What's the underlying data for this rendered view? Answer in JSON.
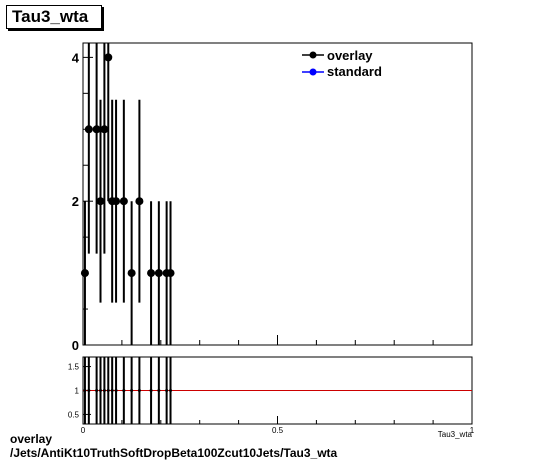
{
  "title": "Tau3_wta",
  "footer": {
    "line1": "overlay",
    "line2": "/Jets/AntiKt10TruthSoftDropBeta100Zcut10Jets/Tau3_wta"
  },
  "colors": {
    "overlay": "#000000",
    "standard": "#0000ff",
    "ratio_line": "#cc0000"
  },
  "chart_data": [
    {
      "type": "scatter",
      "title": "Tau3_wta",
      "xlabel": "Tau3_wta",
      "ylabel": "",
      "xlim": [
        0,
        1
      ],
      "ylim": [
        0,
        4.2
      ],
      "yticks": [
        0,
        2,
        4
      ],
      "legend_position": "top-right",
      "legend": [
        "overlay",
        "standard"
      ],
      "series": [
        {
          "name": "overlay",
          "x": [
            0.005,
            0.015,
            0.035,
            0.045,
            0.055,
            0.065,
            0.075,
            0.085,
            0.105,
            0.125,
            0.145,
            0.175,
            0.195,
            0.215,
            0.225
          ],
          "y": [
            1,
            3,
            3,
            2,
            3,
            4,
            2,
            2,
            2,
            1,
            2,
            1,
            1,
            1,
            1
          ],
          "err": [
            1,
            1.73,
            1.73,
            1.41,
            1.73,
            2,
            1.41,
            1.41,
            1.41,
            1,
            1.41,
            1,
            1,
            1,
            1
          ]
        },
        {
          "name": "standard",
          "x": [],
          "y": []
        }
      ]
    },
    {
      "type": "scatter",
      "title": "",
      "xlabel": "",
      "ylabel": "",
      "xlim": [
        0,
        1
      ],
      "ylim": [
        0.3,
        1.7
      ],
      "yticks": [
        0.5,
        1,
        1.5
      ],
      "xticks": [
        0,
        0.5,
        1
      ],
      "reference_line": 1,
      "series": [
        {
          "name": "ratio",
          "x": [
            0.005,
            0.015,
            0.035,
            0.045,
            0.055,
            0.065,
            0.075,
            0.085,
            0.105,
            0.125,
            0.145,
            0.175,
            0.195,
            0.215,
            0.225
          ],
          "y": [
            1,
            1,
            1,
            1,
            1,
            1,
            1,
            1,
            1,
            1,
            1,
            1,
            1,
            1,
            1
          ]
        }
      ]
    }
  ]
}
